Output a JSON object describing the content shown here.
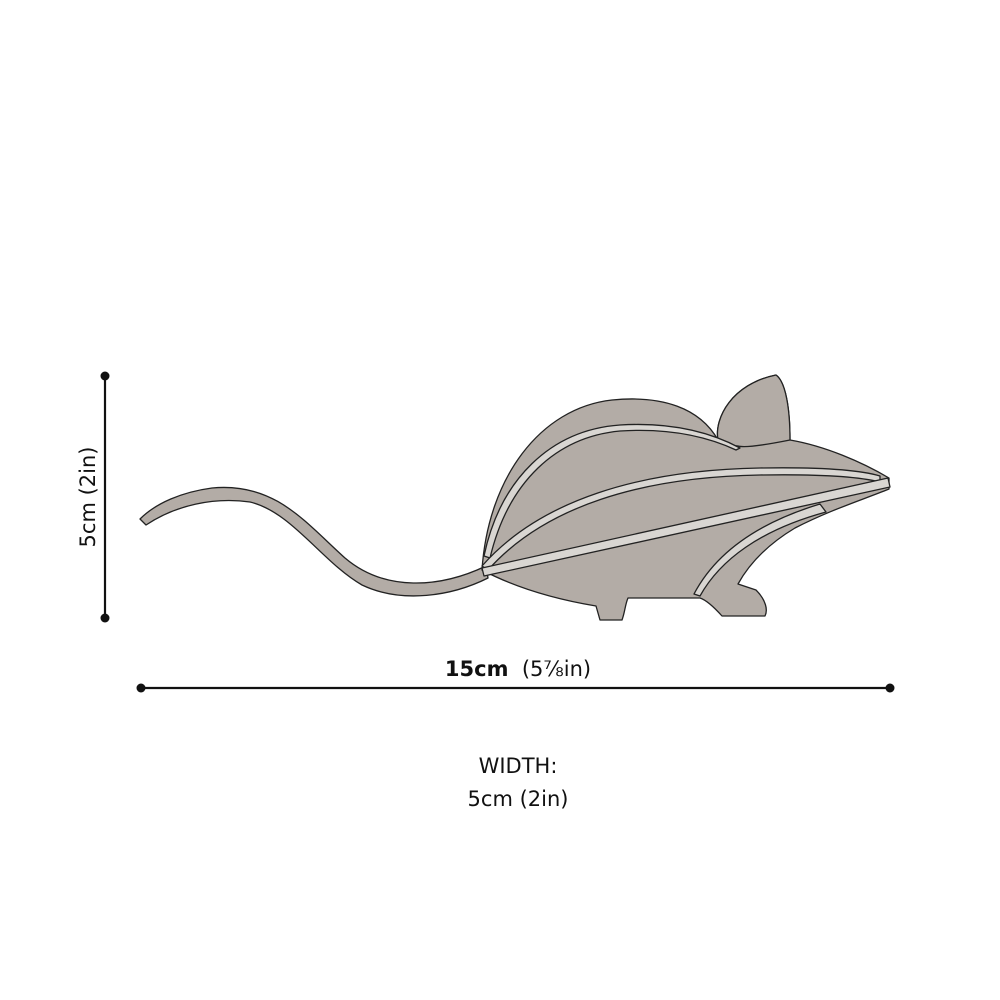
{
  "dimensions": {
    "height_label": "5cm  (2in)",
    "length_value": "15cm",
    "length_imperial": "(5⅞in)",
    "width_title": "WIDTH:",
    "width_value": "5cm  (2in)"
  },
  "colors": {
    "mouse_fill": "#b3aca6",
    "mouse_edge": "#d9d6d2",
    "line": "#111111"
  }
}
